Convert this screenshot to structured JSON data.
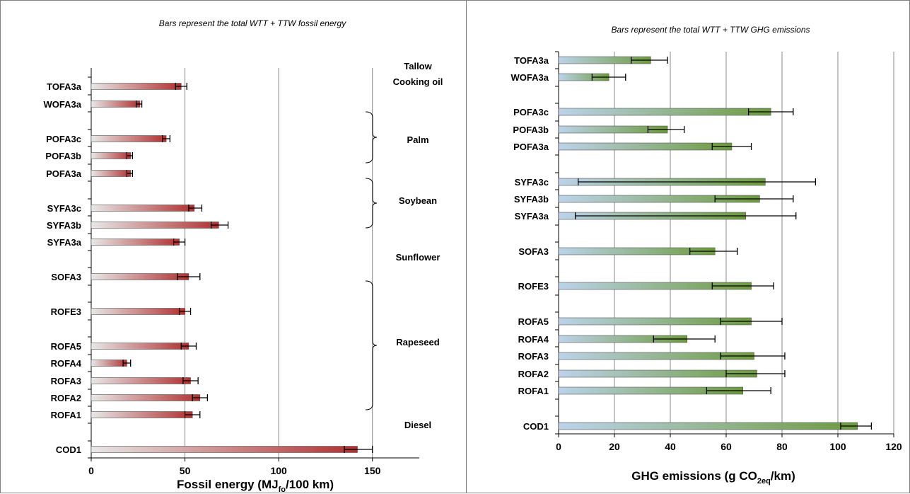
{
  "colors": {
    "fossil_bar_start": "#e8e8e8",
    "fossil_bar_end": "#b03030",
    "ghg_bar_start": "#bcd3ea",
    "ghg_bar_end": "#6d9a3e",
    "grid": "#888888",
    "axis": "#000000"
  },
  "chart_data": [
    {
      "type": "bar",
      "orientation": "horizontal",
      "subtitle": "Bars represent the total WTT + TTW fossil energy",
      "xlabel": {
        "main": "Fossil energy (MJ",
        "sub": "fo",
        "rest": "/100 km)"
      },
      "xlim": [
        0,
        175
      ],
      "xticks": [
        "0",
        "50",
        "100",
        "150"
      ],
      "grid": true,
      "categories": [
        "TOFA3a",
        "WOFA3a",
        "POFA3c",
        "POFA3b",
        "POFA3a",
        "SYFA3c",
        "SYFA3b",
        "SYFA3a",
        "SOFA3",
        "ROFE3",
        "ROFA5",
        "ROFA4",
        "ROFA3",
        "ROFA2",
        "ROFA1",
        "COD1"
      ],
      "values": [
        48,
        26,
        40,
        21,
        21,
        55,
        68,
        47,
        52,
        50,
        52,
        19,
        53,
        58,
        54,
        142
      ],
      "error_low": [
        45,
        24,
        38,
        19,
        19,
        52,
        64,
        44,
        46,
        47,
        48,
        17,
        49,
        54,
        50,
        135
      ],
      "error_high": [
        51,
        27,
        42,
        22,
        22,
        59,
        73,
        50,
        58,
        53,
        56,
        21,
        57,
        62,
        58,
        150
      ],
      "groups": [
        "Tallow",
        "Cooking oil",
        "Palm",
        "Soybean",
        "Sunflower",
        "Rapeseed",
        "Diesel"
      ]
    },
    {
      "type": "bar",
      "orientation": "horizontal",
      "subtitle": "Bars represent the total WTT + TTW GHG emissions",
      "xlabel": {
        "main": "GHG emissions  (g CO",
        "sub": "2eq",
        "rest": "/km)"
      },
      "xlim": [
        0,
        120
      ],
      "xticks": [
        "0",
        "20",
        "40",
        "60",
        "80",
        "100",
        "120"
      ],
      "grid": true,
      "categories": [
        "TOFA3a",
        "WOFA3a",
        "POFA3c",
        "POFA3b",
        "POFA3a",
        "SYFA3c",
        "SYFA3b",
        "SYFA3a",
        "SOFA3",
        "ROFE3",
        "ROFA5",
        "ROFA4",
        "ROFA3",
        "ROFA2",
        "ROFA1",
        "COD1"
      ],
      "values": [
        33,
        18,
        76,
        39,
        62,
        74,
        72,
        67,
        56,
        69,
        69,
        46,
        70,
        71,
        66,
        107
      ],
      "error_low": [
        26,
        12,
        68,
        32,
        55,
        7,
        56,
        6,
        47,
        55,
        58,
        34,
        58,
        60,
        53,
        101
      ],
      "error_high": [
        39,
        24,
        84,
        45,
        69,
        92,
        84,
        85,
        64,
        77,
        80,
        56,
        81,
        81,
        76,
        112
      ]
    }
  ]
}
